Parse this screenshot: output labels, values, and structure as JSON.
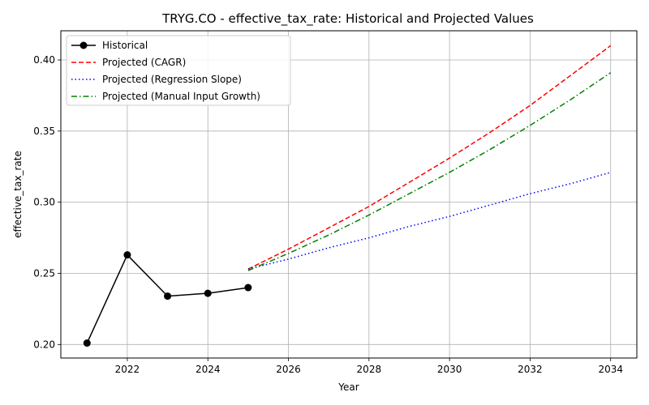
{
  "chart_data": {
    "type": "line",
    "title": "TRYG.CO - effective_tax_rate: Historical and Projected Values",
    "xlabel": "Year",
    "ylabel": "effective_tax_rate",
    "xlim": [
      2020.35,
      2034.65
    ],
    "ylim": [
      0.1905,
      0.4205
    ],
    "x_ticks": [
      2022,
      2024,
      2026,
      2028,
      2030,
      2032,
      2034
    ],
    "y_ticks": [
      0.2,
      0.25,
      0.3,
      0.35,
      0.4
    ],
    "x_tick_labels": [
      "2022",
      "2024",
      "2026",
      "2028",
      "2030",
      "2032",
      "2034"
    ],
    "y_tick_labels": [
      "0.20",
      "0.25",
      "0.30",
      "0.35",
      "0.40"
    ],
    "grid": true,
    "legend_position": "upper-left",
    "series": [
      {
        "name": "Historical",
        "color": "#000000",
        "style": "solid-markers",
        "x": [
          2021,
          2022,
          2023,
          2024,
          2025
        ],
        "y": [
          0.201,
          0.263,
          0.234,
          0.236,
          0.24
        ]
      },
      {
        "name": "Projected (CAGR)",
        "color": "#ff0000",
        "style": "dashed",
        "x": [
          2025,
          2026,
          2027,
          2028,
          2029,
          2030,
          2031,
          2032,
          2033,
          2034
        ],
        "y": [
          0.253,
          0.267,
          0.282,
          0.297,
          0.314,
          0.331,
          0.349,
          0.368,
          0.389,
          0.41
        ]
      },
      {
        "name": "Projected (Regression Slope)",
        "color": "#0000ff",
        "style": "dotted",
        "x": [
          2025,
          2026,
          2027,
          2028,
          2029,
          2030,
          2031,
          2032,
          2033,
          2034
        ],
        "y": [
          0.253,
          0.26,
          0.268,
          0.275,
          0.283,
          0.29,
          0.298,
          0.306,
          0.313,
          0.321
        ]
      },
      {
        "name": "Projected (Manual Input Growth)",
        "color": "#008000",
        "style": "dashdot",
        "x": [
          2025,
          2026,
          2027,
          2028,
          2029,
          2030,
          2031,
          2032,
          2033,
          2034
        ],
        "y": [
          0.252,
          0.264,
          0.277,
          0.291,
          0.306,
          0.321,
          0.337,
          0.354,
          0.372,
          0.391
        ]
      }
    ]
  }
}
